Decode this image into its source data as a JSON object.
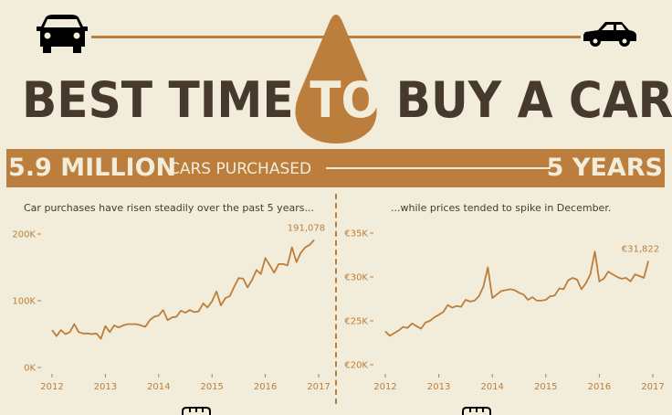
{
  "header": {
    "title_part1": "BEST TIME",
    "title_highlight": "TO",
    "title_part2": "BUY A CAR",
    "left_icon": "car-front-icon",
    "right_icon": "car-side-icon"
  },
  "banner": {
    "stat_value": "5.9 MILLION",
    "stat_label": "CARS PURCHASED",
    "period": "5 YEARS"
  },
  "colors": {
    "background": "#f2ecda",
    "accent": "#bc7e3c",
    "text": "#463a2f"
  },
  "chart_data": [
    {
      "type": "line",
      "title": "Car purchases have risen steadily over the past 5 years...",
      "x_ticks": [
        "2012",
        "2013",
        "2014",
        "2015",
        "2016",
        "2017"
      ],
      "y_ticks": [
        "0K",
        "100K",
        "200K"
      ],
      "ylim": [
        0,
        200000
      ],
      "x_start": "2012-01",
      "frequency": "monthly",
      "end_label": "191,078",
      "values": [
        56000,
        47000,
        56000,
        50000,
        53000,
        65000,
        53000,
        51000,
        51000,
        50000,
        51000,
        43000,
        62000,
        53000,
        63000,
        60000,
        63000,
        65000,
        65000,
        65000,
        63000,
        61000,
        71000,
        76000,
        78000,
        86000,
        71000,
        75000,
        76000,
        85000,
        82000,
        86000,
        83000,
        84000,
        96000,
        90000,
        99000,
        114000,
        93000,
        104000,
        107000,
        121000,
        134000,
        133000,
        120000,
        131000,
        146000,
        140000,
        164000,
        153000,
        142000,
        155000,
        155000,
        153000,
        180000,
        158000,
        172000,
        180000,
        184000,
        191078
      ]
    },
    {
      "type": "line",
      "title": "...while prices tended to spike in December.",
      "x_ticks": [
        "2012",
        "2013",
        "2014",
        "2015",
        "2016",
        "2017"
      ],
      "y_ticks": [
        "€20K",
        "€25K",
        "€30K",
        "€35K"
      ],
      "ylim": [
        20000,
        35000
      ],
      "x_start": "2012-01",
      "frequency": "monthly",
      "end_label": "€31,822",
      "values": [
        23800,
        23300,
        23600,
        23900,
        24300,
        24200,
        24700,
        24400,
        24100,
        24800,
        25000,
        25400,
        25700,
        26000,
        26800,
        26500,
        26700,
        26600,
        27400,
        27200,
        27300,
        27800,
        28900,
        31100,
        27600,
        28000,
        28400,
        28500,
        28600,
        28500,
        28200,
        28000,
        27400,
        27700,
        27300,
        27300,
        27400,
        27800,
        27900,
        28700,
        28600,
        29600,
        29900,
        29700,
        28600,
        29300,
        30300,
        32900,
        29500,
        29800,
        30600,
        30300,
        30000,
        29800,
        29900,
        29500,
        30300,
        30100,
        29900,
        31822
      ]
    }
  ]
}
